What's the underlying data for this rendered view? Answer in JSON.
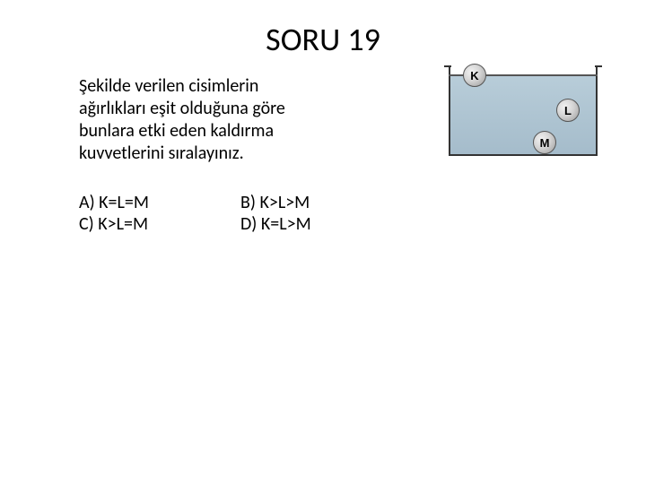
{
  "title": "SORU 19",
  "question": {
    "line1": "Şekilde verilen cisimlerin",
    "line2": "ağırlıkları eşit olduğuna göre",
    "line3": "bunlara etki eden kaldırma",
    "line4": "kuvvetlerini sıralayınız."
  },
  "options": {
    "a": "A) K=L=M",
    "b": "B) K>L>M",
    "c": "C) K>L=M",
    "d": "D) K=L>M"
  },
  "diagram": {
    "balls": {
      "k": "K",
      "l": "L",
      "m": "M"
    },
    "colors": {
      "water_top": "#b8cdd9",
      "water_bottom": "#a5bccb",
      "border": "#333333",
      "ball_light": "#f2f2f2",
      "ball_mid": "#d4d4d4",
      "ball_dark": "#999999"
    }
  }
}
